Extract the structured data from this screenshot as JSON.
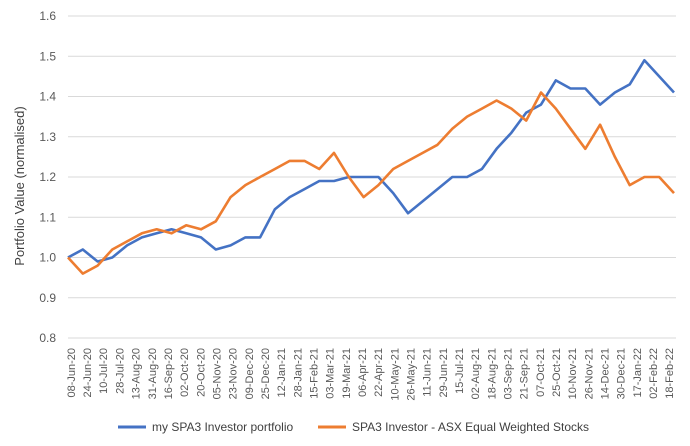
{
  "chart_data": {
    "type": "line",
    "title": "",
    "xlabel": "",
    "ylabel": "Portfolio Value (normalised)",
    "ylim": [
      0.8,
      1.6
    ],
    "yticks": [
      0.8,
      0.9,
      1.0,
      1.1,
      1.2,
      1.3,
      1.4,
      1.5,
      1.6
    ],
    "yticks_labels": [
      "0.8",
      "0.9",
      "1.0",
      "1.1",
      "1.2",
      "1.3",
      "1.4",
      "1.5",
      "1.6"
    ],
    "x_tick_labels": [
      "08-Jun-20",
      "24-Jun-20",
      "10-Jul-20",
      "28-Jul-20",
      "13-Aug-20",
      "31-Aug-20",
      "16-Sep-20",
      "02-Oct-20",
      "20-Oct-20",
      "05-Nov-20",
      "23-Nov-20",
      "09-Dec-20",
      "25-Dec-20",
      "12-Jan-21",
      "28-Jan-21",
      "15-Feb-21",
      "03-Mar-21",
      "19-Mar-21",
      "06-Apr-21",
      "22-Apr-21",
      "10-May-21",
      "26-May-21",
      "11-Jun-21",
      "29-Jun-21",
      "15-Jul-21",
      "02-Aug-21",
      "18-Aug-21",
      "03-Sep-21",
      "21-Sep-21",
      "07-Oct-21",
      "25-Oct-21",
      "10-Nov-21",
      "26-Nov-21",
      "14-Dec-21",
      "30-Dec-21",
      "17-Jan-22",
      "02-Feb-22",
      "18-Feb-22"
    ],
    "grid": true,
    "legend": "bottom",
    "series": [
      {
        "name": "my SPA3 Investor portfolio",
        "color": "#4472C4",
        "values": [
          1.0,
          1.02,
          0.99,
          1.0,
          1.03,
          1.05,
          1.06,
          1.07,
          1.06,
          1.05,
          1.02,
          1.03,
          1.05,
          1.05,
          1.12,
          1.15,
          1.17,
          1.19,
          1.19,
          1.2,
          1.2,
          1.2,
          1.16,
          1.11,
          1.14,
          1.17,
          1.2,
          1.2,
          1.22,
          1.27,
          1.31,
          1.36,
          1.38,
          1.44,
          1.42,
          1.42,
          1.38,
          1.41,
          1.43,
          1.49,
          1.45,
          1.41
        ]
      },
      {
        "name": "SPA3 Investor - ASX Equal Weighted Stocks",
        "color": "#ED7D31",
        "values": [
          1.0,
          0.96,
          0.98,
          1.02,
          1.04,
          1.06,
          1.07,
          1.06,
          1.08,
          1.07,
          1.09,
          1.15,
          1.18,
          1.2,
          1.22,
          1.24,
          1.24,
          1.22,
          1.26,
          1.2,
          1.15,
          1.18,
          1.22,
          1.24,
          1.26,
          1.28,
          1.32,
          1.35,
          1.37,
          1.39,
          1.37,
          1.34,
          1.41,
          1.37,
          1.32,
          1.27,
          1.33,
          1.25,
          1.18,
          1.2,
          1.2,
          1.16
        ]
      }
    ]
  }
}
